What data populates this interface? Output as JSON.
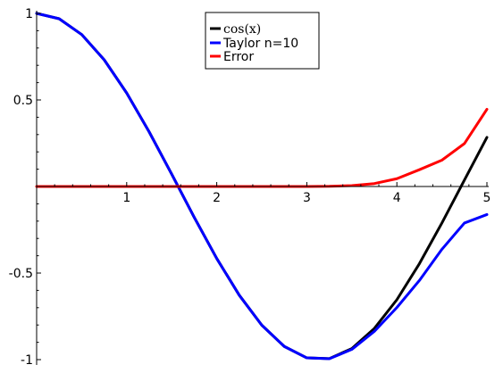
{
  "chart_data": {
    "type": "line",
    "title": "",
    "xlabel": "",
    "ylabel": "",
    "xlim": [
      0,
      5
    ],
    "ylim": [
      -1,
      1
    ],
    "grid": false,
    "legend_position": "top-center",
    "x_ticks": [
      1,
      2,
      3,
      4,
      5
    ],
    "x_tick_labels": [
      "1",
      "2",
      "3",
      "4",
      "5"
    ],
    "y_ticks": [
      1,
      0.5,
      -0.5,
      -1
    ],
    "y_tick_labels": [
      "1",
      "0.5",
      "-0.5",
      "-1"
    ],
    "series": [
      {
        "name": "cos(x)",
        "color": "#000000",
        "x": [
          0,
          0.25,
          0.5,
          0.75,
          1,
          1.25,
          1.5,
          1.75,
          2,
          2.25,
          2.5,
          2.75,
          3,
          3.25,
          3.5,
          3.75,
          4,
          4.25,
          4.5,
          4.75,
          5
        ],
        "y": [
          1,
          0.969,
          0.878,
          0.732,
          0.54,
          0.315,
          0.071,
          -0.178,
          -0.416,
          -0.628,
          -0.801,
          -0.924,
          -0.99,
          -0.994,
          -0.936,
          -0.82,
          -0.654,
          -0.446,
          -0.211,
          0.037,
          0.284
        ]
      },
      {
        "name": "Taylor n=10",
        "color": "#0000ff",
        "x": [
          0,
          0.25,
          0.5,
          0.75,
          1,
          1.25,
          1.5,
          1.75,
          2,
          2.25,
          2.5,
          2.75,
          3,
          3.25,
          3.5,
          3.75,
          4,
          4.25,
          4.5,
          4.75,
          5
        ],
        "y": [
          1,
          0.969,
          0.878,
          0.732,
          0.54,
          0.315,
          0.071,
          -0.178,
          -0.416,
          -0.628,
          -0.801,
          -0.924,
          -0.99,
          -0.995,
          -0.941,
          -0.837,
          -0.699,
          -0.543,
          -0.363,
          -0.211,
          -0.162
        ]
      },
      {
        "name": "Error",
        "color": "#ff0000",
        "x": [
          0,
          0.5,
          1,
          1.5,
          2,
          2.5,
          3,
          3.25,
          3.5,
          3.75,
          4,
          4.25,
          4.5,
          4.75,
          5
        ],
        "y": [
          0,
          0,
          0,
          0,
          0,
          0,
          0,
          0.001,
          0.005,
          0.017,
          0.045,
          0.097,
          0.152,
          0.248,
          0.446
        ]
      }
    ],
    "legend": [
      "cos(x)",
      "Taylor n=10",
      "Error"
    ]
  }
}
